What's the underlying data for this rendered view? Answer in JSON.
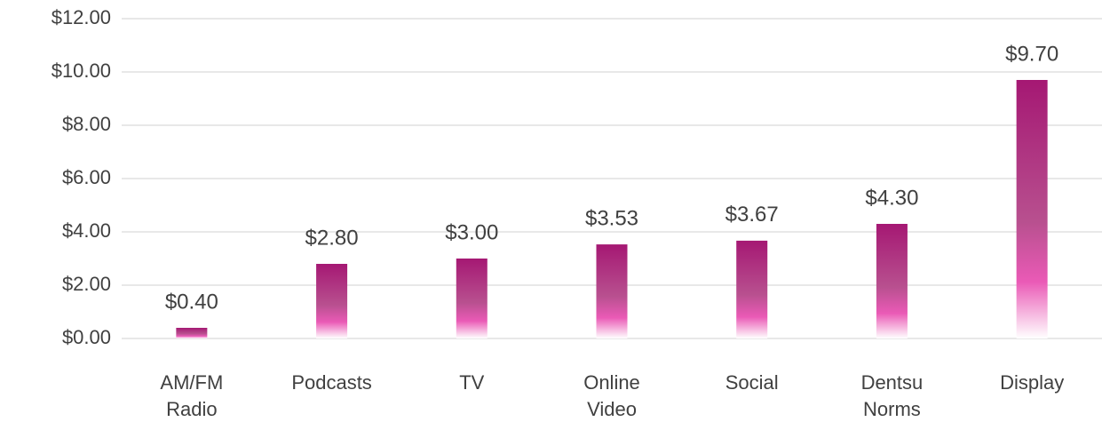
{
  "chart_data": {
    "type": "bar",
    "categories": [
      "AM/FM Radio",
      "Podcasts",
      "TV",
      "Online Video",
      "Social",
      "Dentsu Norms",
      "Display"
    ],
    "values": [
      0.4,
      2.8,
      3.0,
      3.53,
      3.67,
      4.3,
      9.7
    ],
    "value_labels": [
      "$0.40",
      "$2.80",
      "$3.00",
      "$3.53",
      "$3.67",
      "$4.30",
      "$9.70"
    ],
    "color": "#a51873",
    "ylim": [
      0,
      12
    ],
    "yticks": [
      {
        "value": 0,
        "label": "$0.00"
      },
      {
        "value": 2,
        "label": "$2.00"
      },
      {
        "value": 4,
        "label": "$4.00"
      },
      {
        "value": 6,
        "label": "$6.00"
      },
      {
        "value": 8,
        "label": "$8.00"
      },
      {
        "value": 10,
        "label": "$10.00"
      },
      {
        "value": 12,
        "label": "$12.00"
      }
    ],
    "grid": true
  }
}
